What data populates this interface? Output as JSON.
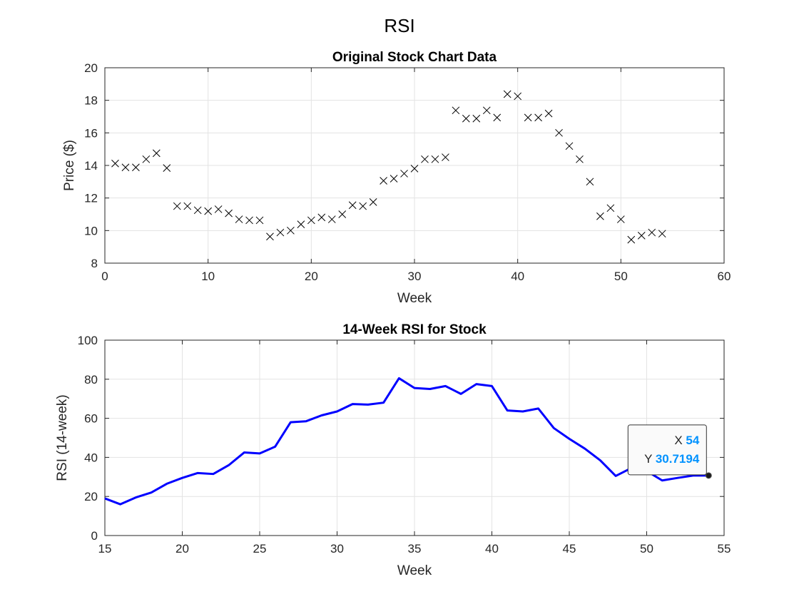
{
  "figure": {
    "title": "RSI"
  },
  "chart_data": [
    {
      "type": "scatter",
      "title": "Original Stock Chart Data",
      "xlabel": "Week",
      "ylabel": "Price ($)",
      "xlim": [
        0,
        60
      ],
      "ylim": [
        8,
        20
      ],
      "xticks": [
        "0",
        "10",
        "20",
        "30",
        "40",
        "50",
        "60"
      ],
      "yticks": [
        "8",
        "10",
        "12",
        "14",
        "16",
        "18",
        "20"
      ],
      "grid": true,
      "marker": "x",
      "color": "#000000",
      "x": [
        1,
        2,
        3,
        4,
        5,
        6,
        7,
        8,
        9,
        10,
        11,
        12,
        13,
        14,
        15,
        16,
        17,
        18,
        19,
        20,
        21,
        22,
        23,
        24,
        25,
        26,
        27,
        28,
        29,
        30,
        31,
        32,
        33,
        34,
        35,
        36,
        37,
        38,
        39,
        40,
        41,
        42,
        43,
        44,
        45,
        46,
        47,
        48,
        49,
        50,
        51,
        52,
        53,
        54
      ],
      "y": [
        14.12,
        13.88,
        13.88,
        14.38,
        14.75,
        13.84,
        11.5,
        11.5,
        11.25,
        11.19,
        11.31,
        11.06,
        10.69,
        10.63,
        10.63,
        9.63,
        9.88,
        10.0,
        10.38,
        10.63,
        10.81,
        10.69,
        11.0,
        11.56,
        11.5,
        11.75,
        13.06,
        13.19,
        13.5,
        13.81,
        14.38,
        14.38,
        14.5,
        17.38,
        16.88,
        16.88,
        17.38,
        16.94,
        18.38,
        18.25,
        16.94,
        16.94,
        17.19,
        16.0,
        15.19,
        14.38,
        13.0,
        10.88,
        11.38,
        10.69,
        9.44,
        9.69,
        9.88,
        9.81
      ]
    },
    {
      "type": "line",
      "title": "14-Week RSI for Stock",
      "xlabel": "Week",
      "ylabel": "RSI (14-week)",
      "xlim": [
        15,
        55
      ],
      "ylim": [
        0,
        100
      ],
      "xticks": [
        "15",
        "20",
        "25",
        "30",
        "35",
        "40",
        "45",
        "50",
        "55"
      ],
      "yticks": [
        "0",
        "20",
        "40",
        "60",
        "80",
        "100"
      ],
      "grid": true,
      "color": "#0000ff",
      "x": [
        15,
        16,
        17,
        18,
        19,
        20,
        21,
        22,
        23,
        24,
        25,
        26,
        27,
        28,
        29,
        30,
        31,
        32,
        33,
        34,
        35,
        36,
        37,
        38,
        39,
        40,
        41,
        42,
        43,
        44,
        45,
        46,
        47,
        48,
        49,
        50,
        51,
        52,
        53,
        54
      ],
      "y": [
        19,
        16,
        19.5,
        22,
        26.5,
        29.5,
        32,
        31.5,
        36,
        42.5,
        42,
        45.5,
        58,
        58.5,
        61.5,
        63.5,
        67.3,
        67,
        68,
        80.5,
        75.5,
        75,
        76.5,
        72.5,
        77.5,
        76.5,
        64,
        63.5,
        65,
        55,
        49.5,
        44.5,
        38.5,
        30.5,
        34.5,
        33,
        28.2,
        29.5,
        30.7,
        30.7194
      ],
      "datatip": {
        "x_label": "X",
        "x_value": "54",
        "y_label": "Y",
        "y_value": "30.7194"
      }
    }
  ]
}
